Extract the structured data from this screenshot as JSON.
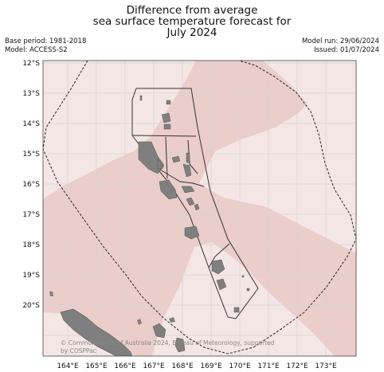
{
  "title_lines": [
    "Difference from average",
    "sea surface temperature forecast for",
    "July 2024"
  ],
  "base_period": "Base period: 1981-2018",
  "model": "Model: ACCESS-S2",
  "model_run": "Model run: 29/06/2024",
  "issued": "Issued: 01/07/2024",
  "lat_labels": [
    "12°S",
    "13°S",
    "14°S",
    "15°S",
    "16°S",
    "17°S",
    "18°S",
    "19°S",
    "20°S"
  ],
  "lon_labels": [
    "164°E",
    "165°E",
    "166°E",
    "167°E",
    "168°E",
    "169°E",
    "170°E",
    "171°E",
    "172°E",
    "173°E"
  ],
  "credit_lines": [
    "© Commonwealth of Australia 2024, Bureau of Meteorology, supported",
    "by COSPPac"
  ],
  "colors": {
    "ocean_light": "#f4e6e4",
    "anomaly_band": "#ebcdca",
    "land": "#7f7f7f",
    "grid": "#d5d5d5",
    "boundary": "#333333"
  }
}
